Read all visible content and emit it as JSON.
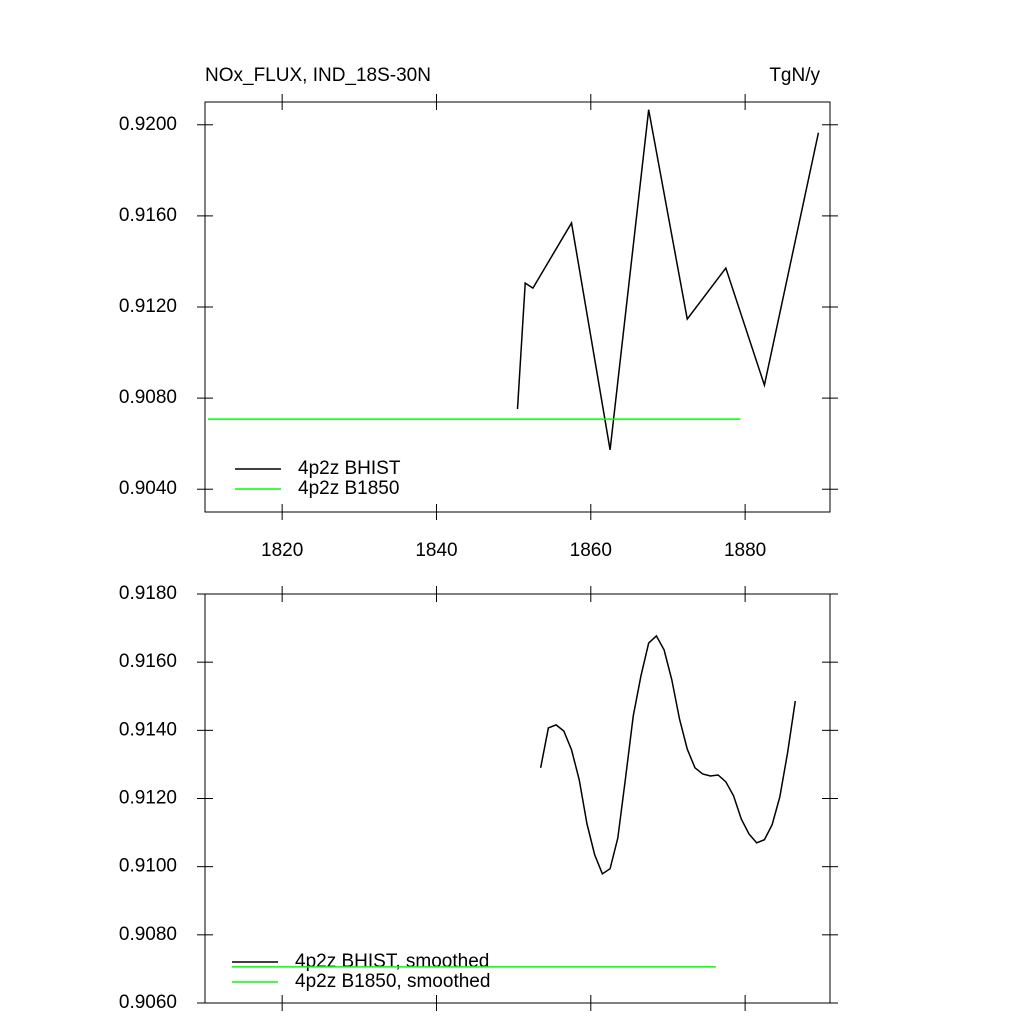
{
  "chart_data": [
    {
      "type": "line",
      "title": "NOx_FLUX, IND_18S-30N",
      "units": "TgN/y",
      "xlim": [
        1810,
        1891
      ],
      "xticks": [
        1820,
        1840,
        1860,
        1880
      ],
      "show_xtick_labels": true,
      "ylim": [
        0.903,
        0.921
      ],
      "yticks": [
        {
          "value": 0.904,
          "label": "0.9040"
        },
        {
          "value": 0.908,
          "label": "0.9080"
        },
        {
          "value": 0.912,
          "label": "0.9120"
        },
        {
          "value": 0.916,
          "label": "0.9160"
        },
        {
          "value": 0.92,
          "label": "0.9200"
        }
      ],
      "series": [
        {
          "name": "4p2z BHIST",
          "color": "#000000",
          "x": [
            1850.5,
            1851.5,
            1852.5,
            1857.5,
            1862.5,
            1867.5,
            1872.5,
            1877.5,
            1882.5,
            1889.5
          ],
          "values": [
            0.90752,
            0.91305,
            0.91283,
            0.91569,
            0.90573,
            0.92066,
            0.91147,
            0.91371,
            0.90857,
            0.91965
          ]
        },
        {
          "name": "4p2z B1850",
          "color": "#00ff00",
          "x": [
            1810.4,
            1879.4
          ],
          "values": [
            0.90708,
            0.90708
          ]
        }
      ]
    },
    {
      "type": "line",
      "xlim": [
        1810,
        1891
      ],
      "xticks": [
        1820,
        1840,
        1860,
        1880
      ],
      "show_xtick_labels": false,
      "ylim": [
        0.906,
        0.918
      ],
      "yticks": [
        {
          "value": 0.906,
          "label": "0.9060"
        },
        {
          "value": 0.908,
          "label": "0.9080"
        },
        {
          "value": 0.91,
          "label": "0.9100"
        },
        {
          "value": 0.912,
          "label": "0.9120"
        },
        {
          "value": 0.914,
          "label": "0.9140"
        },
        {
          "value": 0.916,
          "label": "0.9160"
        },
        {
          "value": 0.918,
          "label": "0.9180"
        }
      ],
      "series": [
        {
          "name": "4p2z BHIST, smoothed",
          "color": "#000000",
          "x": [
            1853.5,
            1854.5,
            1855.5,
            1856.5,
            1857.5,
            1858.5,
            1859.5,
            1860.5,
            1861.5,
            1862.5,
            1863.5,
            1864.5,
            1865.5,
            1866.5,
            1867.5,
            1868.5,
            1869.5,
            1870.5,
            1871.5,
            1872.5,
            1873.5,
            1874.5,
            1875.5,
            1876.5,
            1877.5,
            1878.5,
            1879.5,
            1880.5,
            1881.5,
            1882.5,
            1883.5,
            1884.5,
            1885.5,
            1886.5
          ],
          "values": [
            0.9129,
            0.91407,
            0.91416,
            0.91398,
            0.91343,
            0.91255,
            0.91126,
            0.91035,
            0.90979,
            0.90994,
            0.91084,
            0.9126,
            0.91442,
            0.9156,
            0.91656,
            0.91677,
            0.91636,
            0.91548,
            0.91433,
            0.91345,
            0.9129,
            0.91272,
            0.91266,
            0.91269,
            0.91249,
            0.91208,
            0.9114,
            0.91096,
            0.9107,
            0.91079,
            0.91123,
            0.91205,
            0.91334,
            0.91486
          ]
        },
        {
          "name": "4p2z B1850, smoothed",
          "color": "#00ff00",
          "x": [
            1813.5,
            1876.2
          ],
          "values": [
            0.90706,
            0.90706
          ]
        }
      ]
    }
  ]
}
